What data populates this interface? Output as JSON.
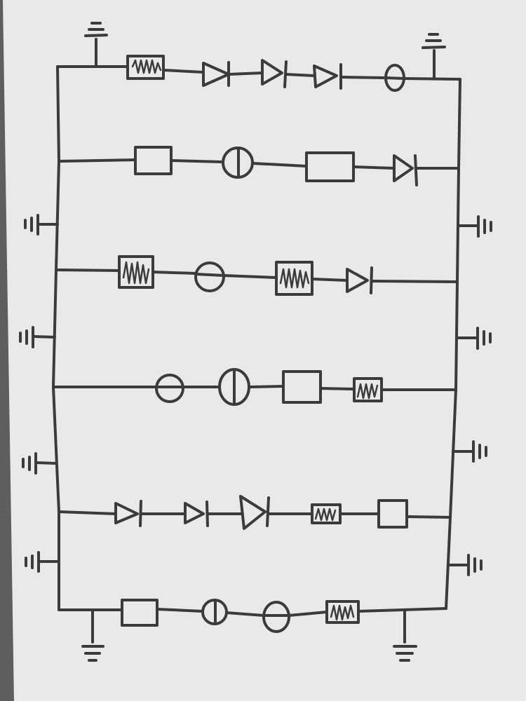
{
  "diagram": {
    "kind": "hand-drawn circuit schematic",
    "rails": [
      "left-rail",
      "right-rail"
    ],
    "rows": [
      {
        "name": "row-1",
        "components": [
          "resistor-zigzag",
          "diode",
          "diode",
          "diode",
          "circle-horizontal-bar"
        ],
        "ground_taps": [
          "top-left",
          "top-right"
        ]
      },
      {
        "name": "row-2",
        "components": [
          "box",
          "circle-vertical-bar",
          "box",
          "diode"
        ],
        "ground_taps": []
      },
      {
        "name": "row-3",
        "components": [
          "resistor-zigzag",
          "circle-horizontal-bar",
          "resistor-zigzag",
          "diode"
        ],
        "ground_taps": []
      },
      {
        "name": "row-4",
        "components": [
          "circle-horizontal-bar",
          "circle-vertical-bar",
          "box",
          "resistor-zigzag"
        ],
        "ground_taps": []
      },
      {
        "name": "row-5",
        "components": [
          "diode",
          "diode",
          "diode",
          "resistor-zigzag",
          "box"
        ],
        "ground_taps": []
      },
      {
        "name": "row-6",
        "components": [
          "box",
          "circle-vertical-bar",
          "circle-horizontal-bar",
          "resistor-zigzag"
        ],
        "ground_taps": [
          "bottom-left",
          "bottom-right"
        ]
      }
    ],
    "side_grounds": {
      "left": 4,
      "right": 4
    }
  }
}
